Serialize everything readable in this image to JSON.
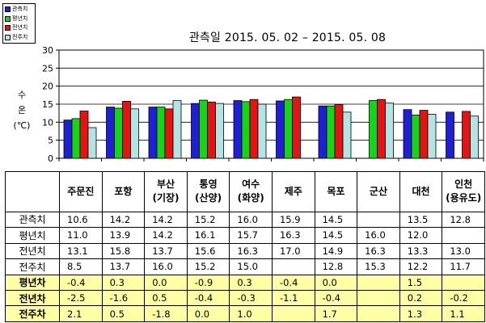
{
  "chart_data": {
    "type": "bar",
    "title": "관측일 2015. 05. 02 – 2015. 05. 08",
    "ylabel": "수\n온\n(℃)",
    "ylim": [
      0,
      30
    ],
    "yticks": [
      "0",
      "5",
      "10",
      "15",
      "20",
      "25",
      "30"
    ],
    "grid": true,
    "legend_position": "top-left",
    "categories": [
      "주문진",
      "포항",
      "부산\n(기장)",
      "통영\n(산양)",
      "여수\n(화양)",
      "제주",
      "목포",
      "군산",
      "대천",
      "인천\n(용유도)"
    ],
    "series": [
      {
        "name": "관측치",
        "color": "#1f1fd8",
        "values": [
          10.6,
          14.2,
          14.2,
          15.2,
          16.0,
          15.9,
          14.5,
          null,
          13.5,
          12.8
        ]
      },
      {
        "name": "평년치",
        "color": "#16d516",
        "values": [
          11.0,
          13.9,
          14.2,
          16.1,
          15.7,
          16.3,
          14.5,
          16.0,
          12.0,
          null
        ]
      },
      {
        "name": "전년치",
        "color": "#e51414",
        "values": [
          13.1,
          15.8,
          13.7,
          15.6,
          16.3,
          17.0,
          14.9,
          16.3,
          13.3,
          13.0
        ]
      },
      {
        "name": "전주치",
        "color": "#b3e3e3",
        "values": [
          8.5,
          13.7,
          16.0,
          15.2,
          15.0,
          null,
          12.8,
          15.3,
          12.2,
          11.7
        ]
      }
    ]
  },
  "table": {
    "rows": [
      {
        "label": "관측치",
        "cells": [
          "10.6",
          "14.2",
          "14.2",
          "15.2",
          "16.0",
          "15.9",
          "14.5",
          "",
          "13.5",
          "12.8"
        ]
      },
      {
        "label": "평년치",
        "cells": [
          "11.0",
          "13.9",
          "14.2",
          "16.1",
          "15.7",
          "16.3",
          "14.5",
          "16.0",
          "12.0",
          ""
        ]
      },
      {
        "label": "전년치",
        "cells": [
          "13.1",
          "15.8",
          "13.7",
          "15.6",
          "16.3",
          "17.0",
          "14.9",
          "16.3",
          "13.3",
          "13.0"
        ]
      },
      {
        "label": "전주치",
        "cells": [
          "8.5",
          "13.7",
          "16.0",
          "15.2",
          "15.0",
          "",
          "12.8",
          "15.3",
          "12.2",
          "11.7"
        ]
      }
    ],
    "deviation_rows": [
      {
        "label": "평년차",
        "cells": [
          "-0.4",
          "0.3",
          "0.0",
          "-0.9",
          "0.3",
          "-0.4",
          "0.0",
          "",
          "1.5",
          ""
        ]
      },
      {
        "label": "전년차",
        "cells": [
          "-2.5",
          "-1.6",
          "0.5",
          "-0.4",
          "-0.3",
          "-1.1",
          "-0.4",
          "",
          "0.2",
          "-0.2"
        ]
      },
      {
        "label": "전주차",
        "cells": [
          "2.1",
          "0.5",
          "-1.8",
          "0.0",
          "1.0",
          "",
          "1.7",
          "",
          "1.3",
          "1.1"
        ]
      }
    ]
  }
}
